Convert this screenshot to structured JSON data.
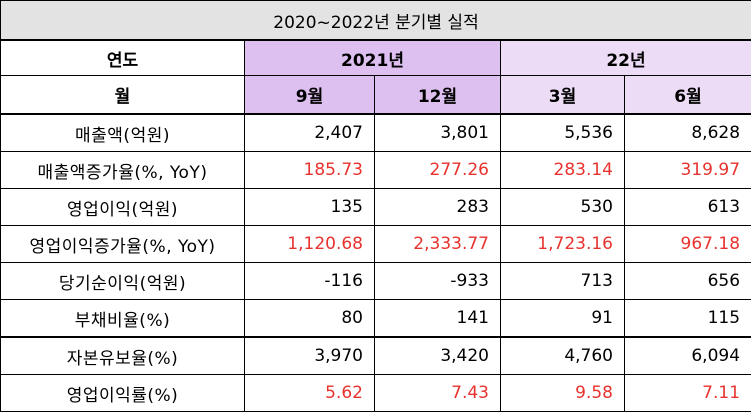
{
  "title": "2020~2022년 분기별 실적",
  "header": {
    "year_label": "연도",
    "month_label": "월",
    "year_2021": "2021년",
    "year_22": "22년",
    "months": [
      "9월",
      "12월",
      "3월",
      "6월"
    ]
  },
  "colors": {
    "header_purple_dark": "#ddc0f0",
    "header_purple_light": "#ecdcf6",
    "title_gray": "#e3e3e3",
    "highlight_red": "#e8322e"
  },
  "rows": [
    {
      "label": "매출액(억원)",
      "values": [
        "2,407",
        "3,801",
        "5,536",
        "8,628"
      ],
      "highlight": false
    },
    {
      "label": "매출액증가율(%, YoY)",
      "values": [
        "185.73",
        "277.26",
        "283.14",
        "319.97"
      ],
      "highlight": true
    },
    {
      "label": "영업이익(억원)",
      "values": [
        "135",
        "283",
        "530",
        "613"
      ],
      "highlight": false
    },
    {
      "label": "영업이익증가율(%, YoY)",
      "values": [
        "1,120.68",
        "2,333.77",
        "1,723.16",
        "967.18"
      ],
      "highlight": true
    },
    {
      "label": "당기순이익(억원)",
      "values": [
        "-116",
        "-933",
        "713",
        "656"
      ],
      "highlight": false
    },
    {
      "label": "부채비율(%)",
      "values": [
        "80",
        "141",
        "91",
        "115"
      ],
      "highlight": false
    },
    {
      "label": "자본유보율(%)",
      "values": [
        "3,970",
        "3,420",
        "4,760",
        "6,094"
      ],
      "highlight": false
    },
    {
      "label": "영업이익률(%)",
      "values": [
        "5.62",
        "7.43",
        "9.58",
        "7.11"
      ],
      "highlight": true
    }
  ]
}
